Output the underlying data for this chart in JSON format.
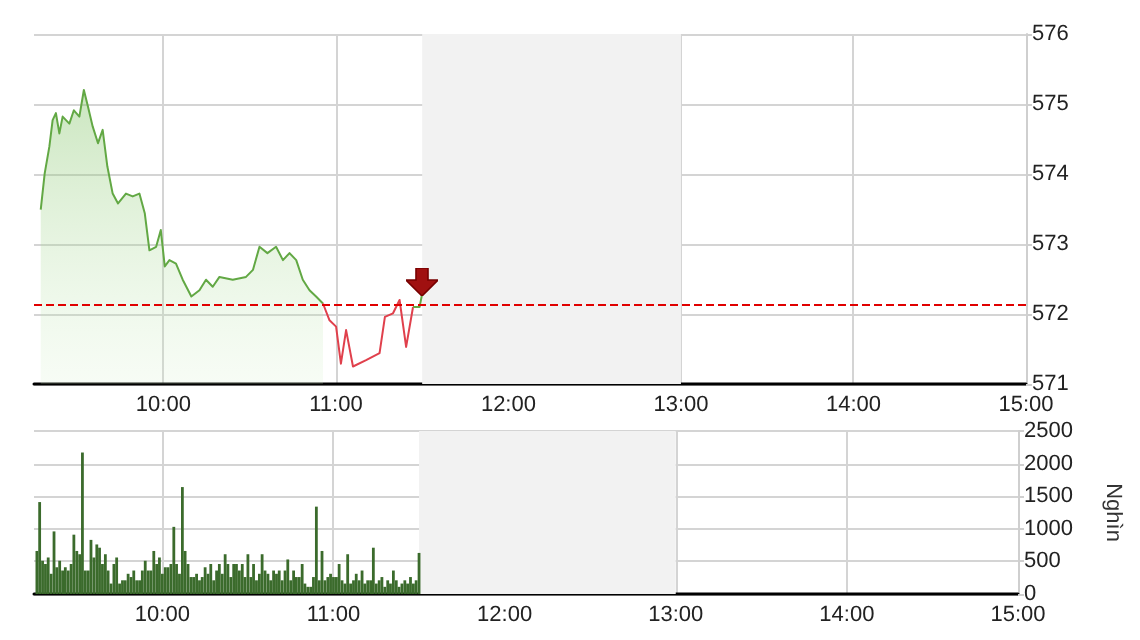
{
  "chart_data": [
    {
      "type": "area",
      "xlim": [
        9.25,
        15
      ],
      "xticks": [
        {
          "value": 10,
          "label": "10:00"
        },
        {
          "value": 11,
          "label": "11:00"
        },
        {
          "value": 12,
          "label": "12:00"
        },
        {
          "value": 13,
          "label": "13:00"
        },
        {
          "value": 14,
          "label": "14:00"
        },
        {
          "value": 15,
          "label": "15:00"
        }
      ],
      "ylim": [
        571,
        576
      ],
      "yticks": [
        571,
        572,
        573,
        574,
        575,
        576
      ],
      "grid": true,
      "marker": "none",
      "line_style": "solid",
      "series": [
        {
          "color": "#62a844",
          "x": [
            9.289,
            9.312,
            9.339,
            9.358,
            9.377,
            9.397,
            9.416,
            9.455,
            9.481,
            9.513,
            9.539,
            9.563,
            9.59,
            9.621,
            9.648,
            9.675,
            9.706,
            9.737,
            9.783,
            9.822,
            9.861,
            9.892,
            9.919,
            9.958,
            9.985,
            10.008,
            10.035,
            10.073,
            10.112,
            10.162,
            10.209,
            10.247,
            10.286,
            10.325,
            10.402,
            10.479,
            10.519,
            10.557,
            10.603,
            10.653,
            10.693,
            10.731,
            10.77,
            10.808,
            10.847,
            10.885,
            10.925
          ],
          "values": [
            573.49,
            574.01,
            574.39,
            574.77,
            574.87,
            574.58,
            574.82,
            574.72,
            574.91,
            574.82,
            575.2,
            574.96,
            574.68,
            574.44,
            574.63,
            574.11,
            573.72,
            573.58,
            573.72,
            573.68,
            573.72,
            573.44,
            572.91,
            572.96,
            573.2,
            572.68,
            572.77,
            572.72,
            572.49,
            572.25,
            572.34,
            572.49,
            572.39,
            572.53,
            572.49,
            572.53,
            572.63,
            572.96,
            572.87,
            572.96,
            572.77,
            572.87,
            572.77,
            572.49,
            572.34,
            572.25,
            572.15
          ]
        },
        {
          "type": "line",
          "color": "#e0404c",
          "x": [
            10.925,
            10.963,
            11.001,
            11.029,
            11.059,
            11.099,
            11.175,
            11.253,
            11.284,
            11.331,
            11.369,
            11.407,
            11.447
          ],
          "values": [
            572.15,
            571.91,
            571.82,
            571.29,
            571.77,
            571.25,
            571.34,
            571.44,
            571.96,
            572.01,
            572.2,
            571.53,
            572.1
          ]
        },
        {
          "type": "line",
          "color": "#62a844",
          "x": [
            11.447,
            11.485,
            11.5
          ],
          "values": [
            572.1,
            572.1,
            572.29
          ]
        }
      ],
      "ref_lines": [
        {
          "axis": "y",
          "value": 572.14,
          "color": "#e00000",
          "line_style": "dashed"
        }
      ],
      "bands": [
        {
          "axis": "x",
          "from": 11.5,
          "to": 13,
          "color": "#f2f2f2"
        }
      ]
    },
    {
      "type": "bar",
      "ylabel": "Nghìn",
      "xlim": [
        9.25,
        15
      ],
      "xticks": [
        {
          "value": 10,
          "label": "10:00"
        },
        {
          "value": 11,
          "label": "11:00"
        },
        {
          "value": 12,
          "label": "12:00"
        },
        {
          "value": 13,
          "label": "13:00"
        },
        {
          "value": 14,
          "label": "14:00"
        },
        {
          "value": 15,
          "label": "15:00"
        }
      ],
      "ylim": [
        0,
        2500
      ],
      "yticks": [
        0,
        500,
        1000,
        1500,
        2000,
        2500
      ],
      "grid": true,
      "series": [
        {
          "color": "#3b6b2c",
          "x": [
            9.267,
            9.283,
            9.3,
            9.317,
            9.333,
            9.35,
            9.367,
            9.383,
            9.4,
            9.417,
            9.433,
            9.45,
            9.467,
            9.483,
            9.5,
            9.517,
            9.533,
            9.55,
            9.567,
            9.583,
            9.6,
            9.617,
            9.633,
            9.65,
            9.667,
            9.683,
            9.7,
            9.717,
            9.733,
            9.75,
            9.767,
            9.783,
            9.8,
            9.817,
            9.833,
            9.85,
            9.867,
            9.883,
            9.9,
            9.917,
            9.933,
            9.95,
            9.967,
            9.983,
            10,
            10.017,
            10.033,
            10.05,
            10.067,
            10.083,
            10.1,
            10.117,
            10.133,
            10.15,
            10.167,
            10.183,
            10.2,
            10.217,
            10.233,
            10.25,
            10.267,
            10.283,
            10.3,
            10.317,
            10.333,
            10.35,
            10.367,
            10.383,
            10.4,
            10.417,
            10.433,
            10.45,
            10.467,
            10.483,
            10.5,
            10.517,
            10.533,
            10.55,
            10.567,
            10.583,
            10.6,
            10.617,
            10.633,
            10.65,
            10.667,
            10.683,
            10.7,
            10.717,
            10.733,
            10.75,
            10.767,
            10.783,
            10.8,
            10.817,
            10.833,
            10.85,
            10.867,
            10.883,
            10.9,
            10.917,
            10.933,
            10.95,
            10.967,
            10.983,
            11,
            11.017,
            11.033,
            11.05,
            11.067,
            11.083,
            11.1,
            11.117,
            11.133,
            11.15,
            11.167,
            11.183,
            11.2,
            11.217,
            11.233,
            11.25,
            11.267,
            11.283,
            11.3,
            11.317,
            11.333,
            11.35,
            11.367,
            11.383,
            11.4,
            11.417,
            11.433,
            11.45,
            11.467,
            11.483,
            11.5
          ],
          "values": [
            660,
            1410,
            510,
            460,
            560,
            310,
            960,
            410,
            510,
            360,
            410,
            360,
            460,
            910,
            660,
            610,
            2170,
            360,
            360,
            830,
            560,
            760,
            710,
            460,
            610,
            360,
            160,
            460,
            560,
            160,
            210,
            210,
            310,
            260,
            360,
            210,
            210,
            360,
            510,
            360,
            360,
            660,
            460,
            560,
            310,
            410,
            410,
            460,
            1030,
            460,
            310,
            1640,
            660,
            460,
            260,
            260,
            310,
            210,
            260,
            410,
            310,
            460,
            210,
            360,
            460,
            310,
            610,
            460,
            260,
            460,
            460,
            360,
            460,
            260,
            610,
            260,
            460,
            210,
            310,
            610,
            360,
            310,
            210,
            360,
            310,
            360,
            210,
            360,
            530,
            210,
            360,
            260,
            260,
            460,
            160,
            110,
            110,
            260,
            1340,
            210,
            660,
            210,
            260,
            310,
            260,
            260,
            460,
            210,
            160,
            610,
            160,
            210,
            310,
            210,
            360,
            160,
            210,
            210,
            710,
            160,
            210,
            260,
            110,
            210,
            160,
            360,
            210,
            110,
            160,
            210,
            160,
            260,
            160,
            210,
            630
          ]
        }
      ],
      "bands": [
        {
          "axis": "x",
          "from": 11.5,
          "to": 13,
          "color": "#f2f2f2"
        }
      ]
    }
  ]
}
